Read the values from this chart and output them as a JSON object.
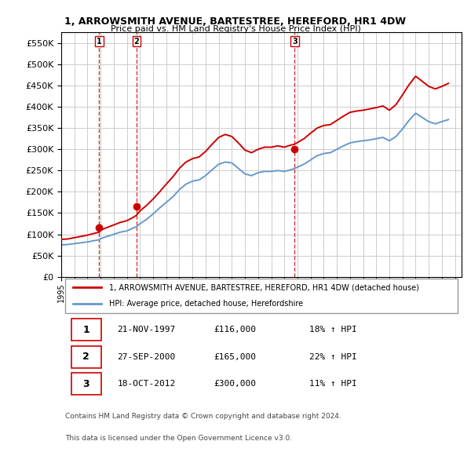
{
  "title": "1, ARROWSMITH AVENUE, BARTESTREE, HEREFORD, HR1 4DW",
  "subtitle": "Price paid vs. HM Land Registry's House Price Index (HPI)",
  "legend_label_red": "1, ARROWSMITH AVENUE, BARTESTREE, HEREFORD, HR1 4DW (detached house)",
  "legend_label_blue": "HPI: Average price, detached house, Herefordshire",
  "footer1": "Contains HM Land Registry data © Crown copyright and database right 2024.",
  "footer2": "This data is licensed under the Open Government Licence v3.0.",
  "sales": [
    {
      "label": "1",
      "date": "21-NOV-1997",
      "price": 116000,
      "hpi_pct": "18% ↑ HPI"
    },
    {
      "label": "2",
      "date": "27-SEP-2000",
      "price": 165000,
      "hpi_pct": "22% ↑ HPI"
    },
    {
      "label": "3",
      "date": "18-OCT-2012",
      "price": 300000,
      "hpi_pct": "11% ↑ HPI"
    }
  ],
  "sale_years": [
    1997.89,
    2000.74,
    2012.79
  ],
  "sale_prices": [
    116000,
    165000,
    300000
  ],
  "ylim": [
    0,
    575000
  ],
  "yticks": [
    0,
    50000,
    100000,
    150000,
    200000,
    250000,
    300000,
    350000,
    400000,
    450000,
    500000,
    550000
  ],
  "xlim_start": 1995.0,
  "xlim_end": 2025.5,
  "red_color": "#cc0000",
  "blue_color": "#6699cc",
  "bg_color": "#ffffff",
  "grid_color": "#cccccc",
  "hpi_line": {
    "years": [
      1995.0,
      1995.5,
      1996.0,
      1996.5,
      1997.0,
      1997.5,
      1997.89,
      1998.0,
      1998.5,
      1999.0,
      1999.5,
      2000.0,
      2000.5,
      2000.74,
      2001.0,
      2001.5,
      2002.0,
      2002.5,
      2003.0,
      2003.5,
      2004.0,
      2004.5,
      2005.0,
      2005.5,
      2006.0,
      2006.5,
      2007.0,
      2007.5,
      2008.0,
      2008.5,
      2009.0,
      2009.5,
      2010.0,
      2010.5,
      2011.0,
      2011.5,
      2012.0,
      2012.5,
      2012.79,
      2013.0,
      2013.5,
      2014.0,
      2014.5,
      2015.0,
      2015.5,
      2016.0,
      2016.5,
      2017.0,
      2017.5,
      2018.0,
      2018.5,
      2019.0,
      2019.5,
      2020.0,
      2020.5,
      2021.0,
      2021.5,
      2022.0,
      2022.5,
      2023.0,
      2023.5,
      2024.0,
      2024.5
    ],
    "values": [
      75000,
      76000,
      78000,
      80000,
      82000,
      85000,
      87000,
      90000,
      95000,
      100000,
      105000,
      108000,
      115000,
      118000,
      125000,
      135000,
      148000,
      162000,
      175000,
      188000,
      205000,
      218000,
      225000,
      228000,
      238000,
      252000,
      265000,
      270000,
      268000,
      255000,
      242000,
      238000,
      245000,
      248000,
      248000,
      250000,
      248000,
      252000,
      255000,
      258000,
      265000,
      275000,
      285000,
      290000,
      292000,
      300000,
      308000,
      315000,
      318000,
      320000,
      322000,
      325000,
      328000,
      320000,
      330000,
      348000,
      368000,
      385000,
      375000,
      365000,
      360000,
      365000,
      370000
    ]
  },
  "red_line": {
    "years": [
      1995.0,
      1995.5,
      1996.0,
      1996.5,
      1997.0,
      1997.5,
      1997.89,
      1998.0,
      1998.5,
      1999.0,
      1999.5,
      2000.0,
      2000.5,
      2000.74,
      2001.0,
      2001.5,
      2002.0,
      2002.5,
      2003.0,
      2003.5,
      2004.0,
      2004.5,
      2005.0,
      2005.5,
      2006.0,
      2006.5,
      2007.0,
      2007.5,
      2008.0,
      2008.5,
      2009.0,
      2009.5,
      2010.0,
      2010.5,
      2011.0,
      2011.5,
      2012.0,
      2012.5,
      2012.79,
      2013.0,
      2013.5,
      2014.0,
      2014.5,
      2015.0,
      2015.5,
      2016.0,
      2016.5,
      2017.0,
      2017.5,
      2018.0,
      2018.5,
      2019.0,
      2019.5,
      2020.0,
      2020.5,
      2021.0,
      2021.5,
      2022.0,
      2022.5,
      2023.0,
      2023.5,
      2024.0,
      2024.5
    ],
    "values": [
      88000,
      89000,
      92000,
      95000,
      98000,
      102000,
      105000,
      110000,
      116000,
      122000,
      128000,
      132000,
      140000,
      145000,
      155000,
      168000,
      183000,
      200000,
      218000,
      235000,
      255000,
      270000,
      278000,
      282000,
      295000,
      312000,
      328000,
      335000,
      330000,
      315000,
      298000,
      292000,
      300000,
      305000,
      305000,
      308000,
      305000,
      310000,
      312000,
      316000,
      325000,
      338000,
      350000,
      356000,
      358000,
      368000,
      378000,
      387000,
      390000,
      392000,
      395000,
      398000,
      402000,
      392000,
      405000,
      428000,
      452000,
      472000,
      460000,
      448000,
      442000,
      448000,
      455000
    ]
  }
}
